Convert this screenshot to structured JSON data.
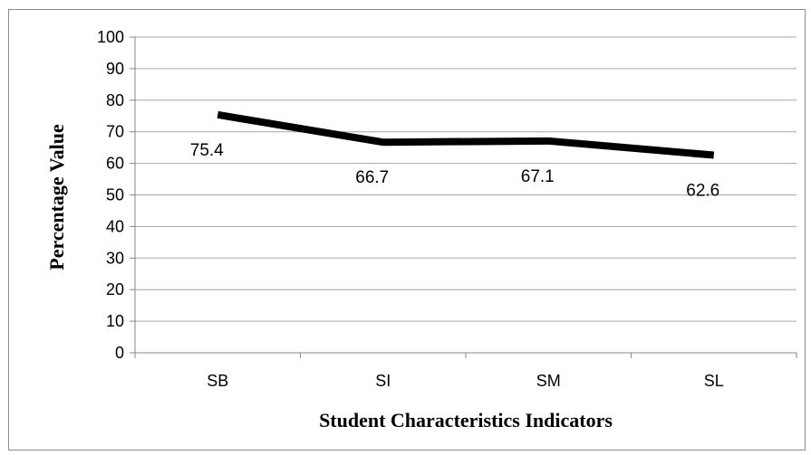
{
  "chart_data": {
    "type": "line",
    "categories": [
      "SB",
      "SI",
      "SM",
      "SL"
    ],
    "series": [
      {
        "values": [
          75.4,
          66.7,
          67.1,
          62.6
        ]
      }
    ],
    "data_labels": [
      "75.4",
      "66.7",
      "67.1",
      "62.6"
    ],
    "title": "",
    "xlabel": "Student Characteristics Indicators",
    "ylabel": "Percentage Value",
    "ylim": [
      0,
      100
    ],
    "yticks": [
      0,
      10,
      20,
      30,
      40,
      50,
      60,
      70,
      80,
      90,
      100
    ],
    "grid": true,
    "legend": "none",
    "line_color": "#000000",
    "grid_color": "#a6a6a6"
  }
}
